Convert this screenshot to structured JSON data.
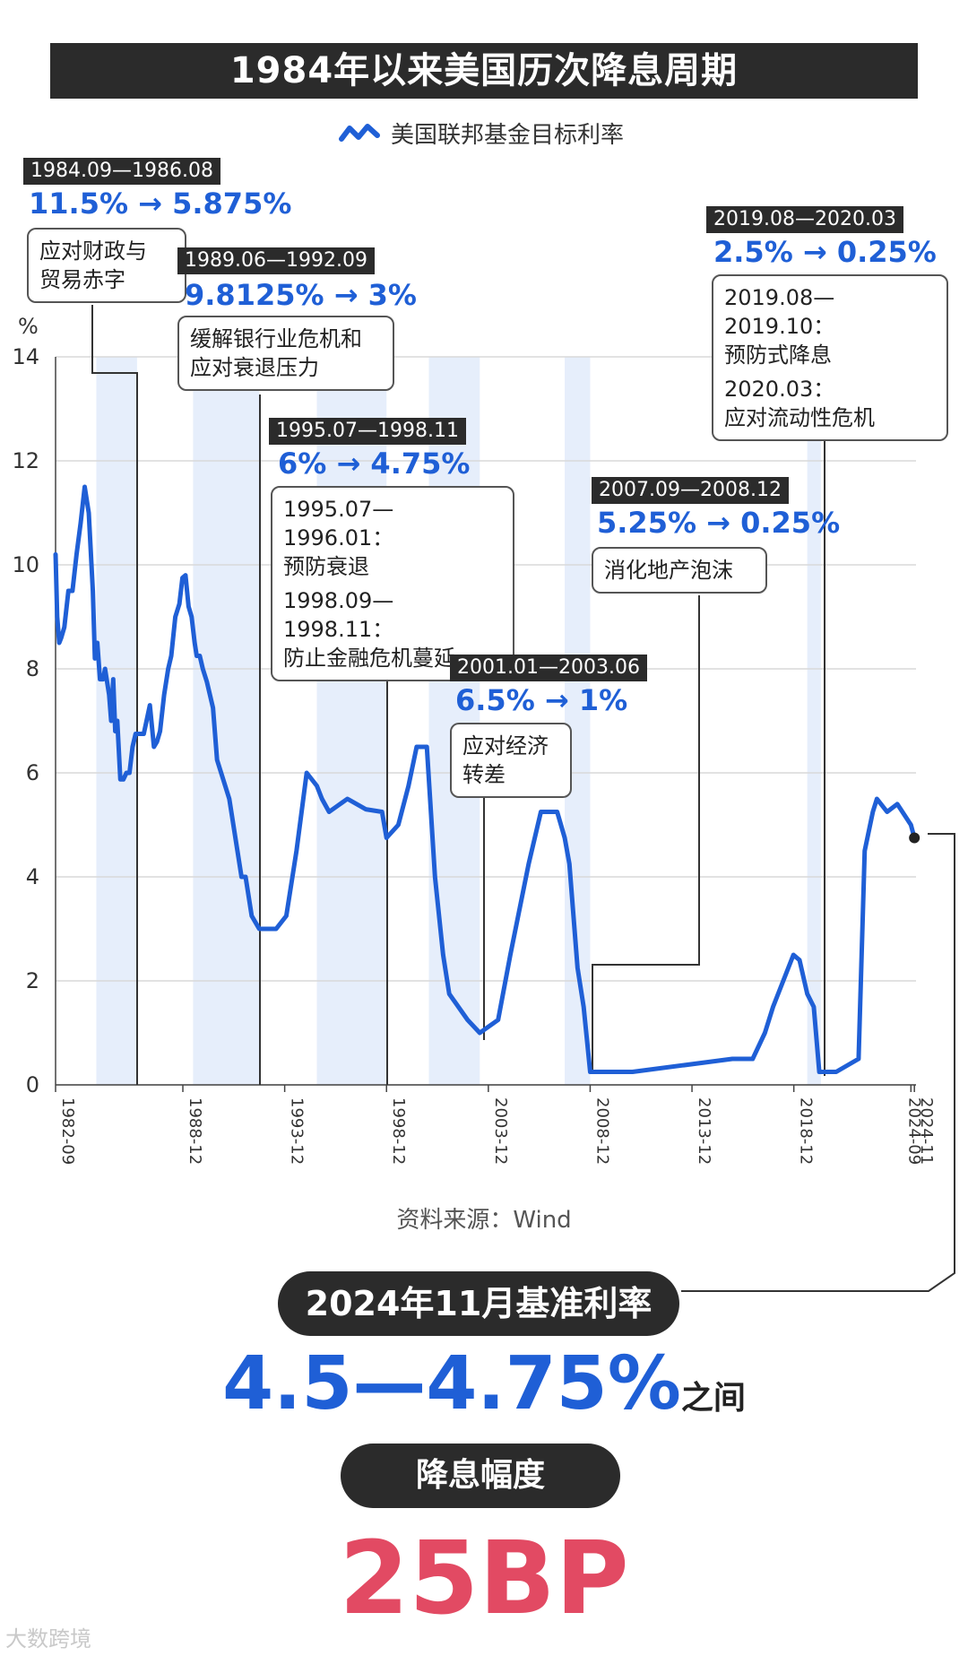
{
  "header": {
    "title": "1984年以来美国历次降息周期",
    "legend_label": "美国联邦基金目标利率"
  },
  "colors": {
    "line": "#1f5fd6",
    "band": "#e6eefb",
    "red": "#e24a63",
    "dark": "#2b2b2b"
  },
  "chart_data": {
    "type": "line",
    "ylabel": "%",
    "ylim": [
      0,
      14
    ],
    "yticks": [
      "0",
      "2",
      "4",
      "6",
      "8",
      "10",
      "12",
      "14"
    ],
    "xlim": [
      1982.67,
      2024.92
    ],
    "xticks": [
      {
        "label": "1982-09",
        "x": 1982.67
      },
      {
        "label": "1988-12",
        "x": 1988.92
      },
      {
        "label": "1993-12",
        "x": 1993.92
      },
      {
        "label": "1998-12",
        "x": 1998.92
      },
      {
        "label": "2003-12",
        "x": 2003.92
      },
      {
        "label": "2008-12",
        "x": 2008.92
      },
      {
        "label": "2013-12",
        "x": 2013.92
      },
      {
        "label": "2018-12",
        "x": 2018.92
      },
      {
        "label": "2024-09",
        "x": 2024.67
      },
      {
        "label": "2024-11",
        "x": 2024.84
      }
    ],
    "grid": true,
    "shaded_periods": [
      [
        1984.67,
        1986.67
      ],
      [
        1989.42,
        1992.67
      ],
      [
        1995.5,
        1998.92
      ],
      [
        2001.0,
        2003.5
      ],
      [
        2007.67,
        2008.92
      ],
      [
        2019.58,
        2020.25
      ]
    ],
    "series": [
      {
        "x": [
          1982.67,
          1982.75,
          1982.85,
          1982.95,
          1983.1,
          1983.3,
          1983.5,
          1983.7,
          1983.9,
          1984.1,
          1984.3,
          1984.5,
          1984.6,
          1984.72,
          1984.85,
          1985.0,
          1985.1,
          1985.2,
          1985.3,
          1985.4,
          1985.5,
          1985.6,
          1985.7,
          1985.85,
          1986.0,
          1986.15,
          1986.3,
          1986.45,
          1986.6,
          1986.7,
          1987.0,
          1987.3,
          1987.5,
          1987.65,
          1987.8,
          1988.0,
          1988.2,
          1988.35,
          1988.55,
          1988.75,
          1988.9,
          1989.05,
          1989.2,
          1989.35,
          1989.5,
          1989.6,
          1989.75,
          1989.9,
          1990.1,
          1990.4,
          1990.6,
          1990.8,
          1991.0,
          1991.2,
          1991.4,
          1991.6,
          1991.8,
          1992.0,
          1992.3,
          1992.67,
          1993.5,
          1994.0,
          1994.5,
          1995.0,
          1995.5,
          1995.75,
          1996.1,
          1997.0,
          1997.9,
          1998.7,
          1998.92,
          1999.5,
          2000.0,
          2000.4,
          2000.9,
          2001.3,
          2001.7,
          2002.0,
          2002.9,
          2003.5,
          2004.4,
          2005.0,
          2005.9,
          2006.5,
          2007.3,
          2007.67,
          2007.9,
          2008.3,
          2008.6,
          2008.92,
          2011.0,
          2015.9,
          2016.9,
          2017.5,
          2017.9,
          2018.4,
          2018.9,
          2019.2,
          2019.58,
          2019.9,
          2020.17,
          2020.25,
          2021.0,
          2022.1,
          2022.4,
          2022.8,
          2023.0,
          2023.5,
          2024.0,
          2024.67,
          2024.84
        ],
        "values": [
          10.2,
          9.0,
          8.5,
          8.6,
          8.8,
          9.5,
          9.5,
          10.2,
          10.8,
          11.5,
          11.0,
          9.5,
          8.2,
          8.5,
          7.8,
          7.8,
          8.0,
          7.75,
          7.5,
          7.0,
          7.8,
          6.8,
          7.0,
          5.875,
          5.875,
          6.0,
          6.0,
          6.5,
          6.75,
          6.75,
          6.75,
          7.3,
          6.5,
          6.6,
          6.8,
          7.5,
          8.0,
          8.25,
          9.0,
          9.25,
          9.75,
          9.8,
          9.2,
          9.0,
          8.5,
          8.25,
          8.25,
          8.0,
          7.75,
          7.25,
          6.25,
          6.0,
          5.75,
          5.5,
          5.0,
          4.5,
          4.0,
          4.0,
          3.25,
          3.0,
          3.0,
          3.25,
          4.5,
          6.0,
          5.75,
          5.5,
          5.25,
          5.5,
          5.3,
          5.25,
          4.75,
          5.0,
          5.75,
          6.5,
          6.5,
          4.0,
          2.5,
          1.75,
          1.25,
          1.0,
          1.25,
          2.5,
          4.25,
          5.25,
          5.25,
          4.75,
          4.25,
          2.25,
          1.5,
          0.25,
          0.25,
          0.5,
          0.5,
          1.0,
          1.5,
          2.0,
          2.5,
          2.4,
          1.75,
          1.5,
          0.25,
          0.25,
          0.25,
          0.5,
          4.5,
          5.25,
          5.5,
          5.25,
          5.4,
          5.0,
          4.75
        ]
      }
    ]
  },
  "annotations": [
    {
      "tag": "1984.09—1986.08",
      "rate": "11.5% → 5.875%",
      "note_lines": [
        "应对财政与",
        "贸易赤字"
      ]
    },
    {
      "tag": "1989.06—1992.09",
      "rate": "9.8125% → 3%",
      "note_lines": [
        "缓解银行业危机和",
        "应对衰退压力"
      ]
    },
    {
      "tag": "1995.07—1998.11",
      "rate": "6% → 4.75%",
      "note_lines": [
        "1995.07—1996.01：",
        "预防衰退",
        "1998.09—1998.11：",
        "防止金融危机蔓延"
      ]
    },
    {
      "tag": "2001.01—2003.06",
      "rate": "6.5% → 1%",
      "note_lines": [
        "应对经济",
        "转差"
      ]
    },
    {
      "tag": "2007.09—2008.12",
      "rate": "5.25% → 0.25%",
      "note_lines": [
        "消化地产泡沫"
      ]
    },
    {
      "tag": "2019.08—2020.03",
      "rate": "2.5% → 0.25%",
      "note_lines": [
        "2019.08—2019.10：",
        "预防式降息",
        "2020.03：",
        "应对流动性危机"
      ]
    }
  ],
  "source": "资料来源：Wind",
  "summary": {
    "rate_label": "2024年11月基准利率",
    "rate_value": "4.5—4.75%",
    "rate_suffix": "之间",
    "cut_label": "降息幅度",
    "cut_value": "25BP"
  },
  "watermark": "大数跨境"
}
